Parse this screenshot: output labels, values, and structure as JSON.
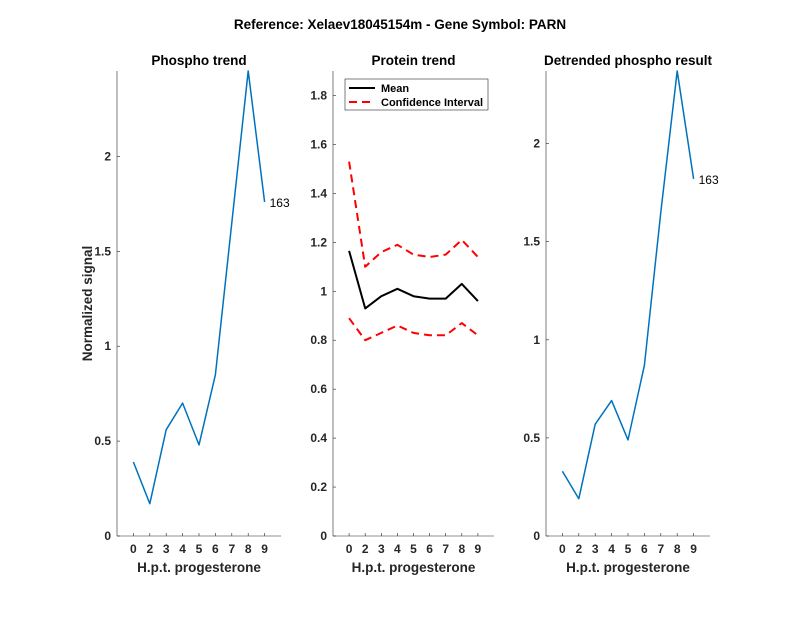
{
  "figure_title": "Reference:  Xelaev18045154m - Gene Symbol:  PARN",
  "chart_data": [
    {
      "type": "line",
      "title": "Phospho trend",
      "xlabel": "H.p.t. progesterone",
      "ylabel": "Normalized signal",
      "categories": [
        "0",
        "2",
        "3",
        "4",
        "5",
        "6",
        "7",
        "8",
        "9"
      ],
      "ylim": [
        0,
        2.45
      ],
      "yticks": [
        0,
        0.5,
        1,
        1.5,
        2
      ],
      "ytick_labels": [
        "0",
        "0.5",
        "1",
        "1.5",
        "2"
      ],
      "series": [
        {
          "name": "163",
          "color": "#0072BD",
          "values": [
            0.39,
            0.17,
            0.56,
            0.7,
            0.48,
            0.85,
            1.65,
            2.45,
            1.76
          ]
        }
      ],
      "end_label": "163"
    },
    {
      "type": "line",
      "title": "Protein trend",
      "xlabel": "H.p.t. progesterone",
      "ylabel": "",
      "categories": [
        "0",
        "2",
        "3",
        "4",
        "5",
        "6",
        "7",
        "8",
        "9"
      ],
      "ylim": [
        0,
        1.9
      ],
      "yticks": [
        0,
        0.2,
        0.4,
        0.6,
        0.8,
        1,
        1.2,
        1.4,
        1.6,
        1.8
      ],
      "ytick_labels": [
        "0",
        "0.2",
        "0.4",
        "0.6",
        "0.8",
        "1",
        "1.2",
        "1.4",
        "1.6",
        "1.8"
      ],
      "legend_position": "top-left",
      "series": [
        {
          "name": "Mean",
          "color": "#000000",
          "style": "solid",
          "values": [
            1.165,
            0.93,
            0.98,
            1.01,
            0.98,
            0.97,
            0.97,
            1.03,
            0.96
          ]
        },
        {
          "name": "Confidence Interval",
          "color": "#FF0000",
          "style": "dashed",
          "values": [
            1.53,
            1.1,
            1.16,
            1.19,
            1.15,
            1.14,
            1.15,
            1.21,
            1.14
          ]
        },
        {
          "name": "Confidence Interval (lower)",
          "legend": false,
          "color": "#FF0000",
          "style": "dashed",
          "values": [
            0.89,
            0.8,
            0.83,
            0.86,
            0.83,
            0.82,
            0.82,
            0.87,
            0.82
          ]
        }
      ]
    },
    {
      "type": "line",
      "title": "Detrended phospho result",
      "xlabel": "H.p.t. progesterone",
      "ylabel": "",
      "categories": [
        "0",
        "2",
        "3",
        "4",
        "5",
        "6",
        "7",
        "8",
        "9"
      ],
      "ylim": [
        0,
        2.37
      ],
      "yticks": [
        0,
        0.5,
        1,
        1.5,
        2
      ],
      "ytick_labels": [
        "0",
        "0.5",
        "1",
        "1.5",
        "2"
      ],
      "series": [
        {
          "name": "163",
          "color": "#0072BD",
          "values": [
            0.33,
            0.19,
            0.57,
            0.69,
            0.49,
            0.87,
            1.65,
            2.37,
            1.82
          ]
        }
      ],
      "end_label": "163"
    }
  ]
}
